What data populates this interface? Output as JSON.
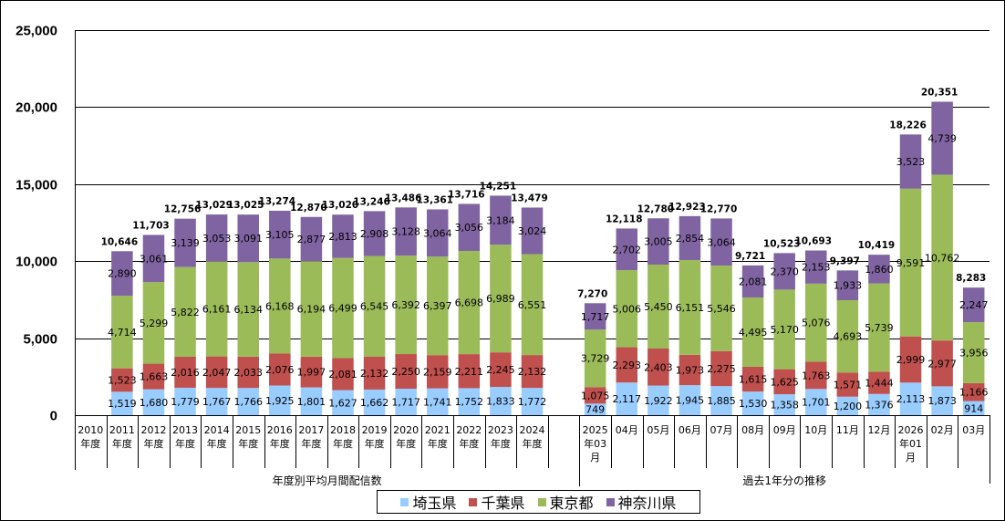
{
  "chart_data": {
    "type": "bar",
    "stacked": true,
    "title": "",
    "xlabel": "",
    "ylabel": "",
    "ylim": [
      0,
      25000
    ],
    "yticks": [
      "0",
      "5,000",
      "10,000",
      "15,000",
      "20,000",
      "25,000"
    ],
    "ytick_values": [
      0,
      5000,
      10000,
      15000,
      20000,
      25000
    ],
    "grid": true,
    "legend_position": "bottom",
    "groups": [
      {
        "label": "年度別平均月間配信数",
        "categories": [
          "2010\n年度",
          "2011\n年度",
          "2012\n年度",
          "2013\n年度",
          "2014\n年度",
          "2015\n年度",
          "2016\n年度",
          "2017\n年度",
          "2018\n年度",
          "2019\n年度",
          "2020\n年度",
          "2021\n年度",
          "2022\n年度",
          "2023\n年度",
          "2024\n年度",
          ""
        ]
      },
      {
        "label": "過去1年分の推移",
        "categories": [
          "2025\n年03\n月",
          "04月",
          "05月",
          "06月",
          "07月",
          "08月",
          "09月",
          "10月",
          "11月",
          "12月",
          "2026\n年01\n月",
          "02月",
          "03月"
        ]
      }
    ],
    "categories": [
      "2010年度",
      "2011年度",
      "2012年度",
      "2013年度",
      "2014年度",
      "2015年度",
      "2016年度",
      "2017年度",
      "2018年度",
      "2019年度",
      "2020年度",
      "2021年度",
      "2022年度",
      "2023年度",
      "2024年度",
      "",
      "2025年03月",
      "04月",
      "05月",
      "06月",
      "07月",
      "08月",
      "09月",
      "10月",
      "11月",
      "12月",
      "2026年01月",
      "02月",
      "03月"
    ],
    "series": [
      {
        "name": "埼玉県",
        "color": "#99CCFF",
        "values": [
          null,
          1519,
          1680,
          1779,
          1767,
          1766,
          1925,
          1801,
          1627,
          1662,
          1717,
          1741,
          1752,
          1833,
          1772,
          null,
          749,
          2117,
          1922,
          1945,
          1885,
          1530,
          1358,
          1701,
          1200,
          1376,
          2113,
          1873,
          914
        ],
        "labels": [
          "",
          "1,519",
          "1,680",
          "1,779",
          "1,767",
          "1,766",
          "1,925",
          "1,801",
          "1,627",
          "1,662",
          "1,717",
          "1,741",
          "1,752",
          "1,833",
          "1,772",
          "",
          "749",
          "2,117",
          "1,922",
          "1,945",
          "1,885",
          "1,530",
          "1,358",
          "1,701",
          "1,200",
          "1,376",
          "2,113",
          "1,873",
          "914"
        ]
      },
      {
        "name": "千葉県",
        "color": "#C0504D",
        "values": [
          null,
          1523,
          1663,
          2016,
          2047,
          2033,
          2076,
          1997,
          2081,
          2132,
          2250,
          2159,
          2211,
          2245,
          2132,
          null,
          1075,
          2293,
          2403,
          1973,
          2275,
          1615,
          1625,
          1763,
          1571,
          1444,
          2999,
          2977,
          1166
        ],
        "labels": [
          "",
          "1,523",
          "1,663",
          "2,016",
          "2,047",
          "2,033",
          "2,076",
          "1,997",
          "2,081",
          "2,132",
          "2,250",
          "2,159",
          "2,211",
          "2,245",
          "2,132",
          "",
          "1,075",
          "2,293",
          "2,403",
          "1,973",
          "2,275",
          "1,615",
          "1,625",
          "1,763",
          "1,571",
          "1,444",
          "2,999",
          "2,977",
          "1,166"
        ]
      },
      {
        "name": "東京都",
        "color": "#9BBB59",
        "values": [
          null,
          4714,
          5299,
          5822,
          6161,
          6134,
          6168,
          6194,
          6499,
          6545,
          6392,
          6397,
          6698,
          6989,
          6551,
          null,
          3729,
          5006,
          5450,
          6151,
          5546,
          4495,
          5170,
          5076,
          4693,
          5739,
          9591,
          10762,
          3956
        ],
        "labels": [
          "",
          "4,714",
          "5,299",
          "5,822",
          "6,161",
          "6,134",
          "6,168",
          "6,194",
          "6,499",
          "6,545",
          "6,392",
          "6,397",
          "6,698",
          "6,989",
          "6,551",
          "",
          "3,729",
          "5,006",
          "5,450",
          "6,151",
          "5,546",
          "4,495",
          "5,170",
          "5,076",
          "4,693",
          "5,739",
          "9,591",
          "10,762",
          "3,956"
        ]
      },
      {
        "name": "神奈川県",
        "color": "#8064A2",
        "values": [
          null,
          2890,
          3061,
          3139,
          3053,
          3091,
          3105,
          2877,
          2813,
          2908,
          3128,
          3064,
          3056,
          3184,
          3024,
          null,
          1717,
          2702,
          3005,
          2854,
          3064,
          2081,
          2370,
          2153,
          1933,
          1860,
          3523,
          4739,
          2247
        ],
        "labels": [
          "",
          "2,890",
          "3,061",
          "3,139",
          "3,053",
          "3,091",
          "3,105",
          "2,877",
          "2,813",
          "2,908",
          "3,128",
          "3,064",
          "3,056",
          "3,184",
          "3,024",
          "",
          "1,717",
          "2,702",
          "3,005",
          "2,854",
          "3,064",
          "2,081",
          "2,370",
          "2,153",
          "1,933",
          "1,860",
          "3,523",
          "4,739",
          "2,247"
        ]
      }
    ],
    "totals": [
      null,
      10646,
      11703,
      12756,
      13029,
      13025,
      13274,
      12870,
      13020,
      13246,
      13486,
      13361,
      13716,
      14251,
      13479,
      null,
      7270,
      12118,
      12780,
      12923,
      12770,
      9721,
      10523,
      10693,
      9397,
      10419,
      18226,
      20351,
      8283
    ],
    "total_labels": [
      "",
      "10,646",
      "11,703",
      "12,756",
      "13,029",
      "13,025",
      "13,274",
      "12,870",
      "13,020",
      "13,246",
      "13,486",
      "13,361",
      "13,716",
      "14,251",
      "13,479",
      "",
      "7,270",
      "12,118",
      "12,780",
      "12,923",
      "12,770",
      "9,721",
      "10,523",
      "10,693",
      "9,397",
      "10,419",
      "18,226",
      "20,351",
      "8,283"
    ]
  },
  "legend": {
    "items": [
      {
        "label": "埼玉県",
        "color": "#99CCFF"
      },
      {
        "label": "千葉県",
        "color": "#C0504D"
      },
      {
        "label": "東京都",
        "color": "#9BBB59"
      },
      {
        "label": "神奈川県",
        "color": "#8064A2"
      }
    ]
  }
}
